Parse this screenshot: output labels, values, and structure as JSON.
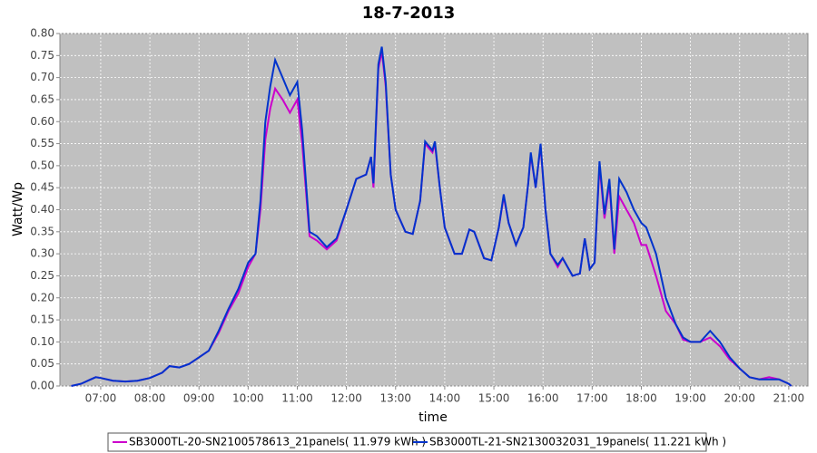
{
  "chart_data": {
    "type": "line",
    "title": "18-7-2013",
    "x_label": "time",
    "y_label": "Watt/Wp",
    "x": [
      6.4,
      6.6,
      6.8,
      6.9,
      7.0,
      7.25,
      7.5,
      7.75,
      8.0,
      8.25,
      8.4,
      8.6,
      8.8,
      9.0,
      9.2,
      9.4,
      9.6,
      9.8,
      10.0,
      10.15,
      10.25,
      10.35,
      10.45,
      10.55,
      10.7,
      10.85,
      11.0,
      11.1,
      11.25,
      11.4,
      11.6,
      11.8,
      12.0,
      12.2,
      12.4,
      12.5,
      12.55,
      12.65,
      12.72,
      12.8,
      12.9,
      13.0,
      13.2,
      13.35,
      13.5,
      13.6,
      13.75,
      13.8,
      13.9,
      14.0,
      14.2,
      14.35,
      14.5,
      14.6,
      14.8,
      14.95,
      15.1,
      15.2,
      15.3,
      15.45,
      15.6,
      15.7,
      15.75,
      15.85,
      15.95,
      16.05,
      16.15,
      16.3,
      16.4,
      16.6,
      16.75,
      16.85,
      16.95,
      17.05,
      17.15,
      17.25,
      17.35,
      17.45,
      17.55,
      17.7,
      17.85,
      18.0,
      18.1,
      18.3,
      18.5,
      18.7,
      18.85,
      19.0,
      19.2,
      19.4,
      19.6,
      19.8,
      20.0,
      20.2,
      20.4,
      20.6,
      20.8,
      21.0,
      21.05
    ],
    "series": [
      {
        "name": "SB3000TL-20-SN2100578613_21panels( 11.979 kWh )",
        "color": "#cc00cc",
        "values": [
          0.0,
          0.005,
          0.015,
          0.02,
          0.018,
          0.012,
          0.01,
          0.012,
          0.018,
          0.03,
          0.045,
          0.042,
          0.05,
          0.065,
          0.08,
          0.12,
          0.17,
          0.21,
          0.27,
          0.3,
          0.4,
          0.56,
          0.63,
          0.675,
          0.65,
          0.62,
          0.65,
          0.55,
          0.34,
          0.33,
          0.31,
          0.33,
          0.4,
          0.47,
          0.48,
          0.52,
          0.45,
          0.72,
          0.76,
          0.68,
          0.48,
          0.4,
          0.35,
          0.345,
          0.42,
          0.55,
          0.53,
          0.55,
          0.45,
          0.36,
          0.3,
          0.3,
          0.355,
          0.35,
          0.29,
          0.285,
          0.36,
          0.43,
          0.37,
          0.32,
          0.36,
          0.46,
          0.525,
          0.45,
          0.545,
          0.4,
          0.3,
          0.27,
          0.29,
          0.25,
          0.255,
          0.335,
          0.265,
          0.28,
          0.5,
          0.38,
          0.46,
          0.3,
          0.43,
          0.4,
          0.37,
          0.32,
          0.32,
          0.25,
          0.17,
          0.14,
          0.105,
          0.1,
          0.1,
          0.11,
          0.09,
          0.06,
          0.04,
          0.02,
          0.015,
          0.02,
          0.015,
          0.005,
          0.0
        ]
      },
      {
        "name": "SB3000TL-21-SN2130032031_19panels( 11.221 kWh )",
        "color": "#0033cc",
        "values": [
          0.0,
          0.005,
          0.015,
          0.02,
          0.018,
          0.012,
          0.01,
          0.012,
          0.018,
          0.03,
          0.045,
          0.042,
          0.05,
          0.065,
          0.08,
          0.125,
          0.175,
          0.22,
          0.28,
          0.3,
          0.42,
          0.6,
          0.68,
          0.74,
          0.7,
          0.66,
          0.69,
          0.58,
          0.35,
          0.34,
          0.315,
          0.335,
          0.4,
          0.47,
          0.48,
          0.52,
          0.46,
          0.73,
          0.77,
          0.69,
          0.48,
          0.4,
          0.35,
          0.345,
          0.42,
          0.555,
          0.535,
          0.555,
          0.45,
          0.36,
          0.3,
          0.3,
          0.355,
          0.35,
          0.29,
          0.285,
          0.36,
          0.435,
          0.37,
          0.32,
          0.36,
          0.46,
          0.53,
          0.45,
          0.55,
          0.4,
          0.3,
          0.275,
          0.29,
          0.25,
          0.255,
          0.335,
          0.265,
          0.28,
          0.51,
          0.39,
          0.47,
          0.31,
          0.47,
          0.44,
          0.4,
          0.37,
          0.36,
          0.3,
          0.2,
          0.14,
          0.11,
          0.1,
          0.1,
          0.125,
          0.1,
          0.065,
          0.04,
          0.02,
          0.015,
          0.015,
          0.015,
          0.005,
          0.0
        ]
      }
    ],
    "xlim": [
      6.17,
      21.39
    ],
    "xticks": [
      {
        "value": 7,
        "label": "07:00"
      },
      {
        "value": 8,
        "label": "08:00"
      },
      {
        "value": 9,
        "label": "09:00"
      },
      {
        "value": 10,
        "label": "10:00"
      },
      {
        "value": 11,
        "label": "11:00"
      },
      {
        "value": 12,
        "label": "12:00"
      },
      {
        "value": 13,
        "label": "13:00"
      },
      {
        "value": 14,
        "label": "14:00"
      },
      {
        "value": 15,
        "label": "15:00"
      },
      {
        "value": 16,
        "label": "16:00"
      },
      {
        "value": 17,
        "label": "17:00"
      },
      {
        "value": 18,
        "label": "18:00"
      },
      {
        "value": 19,
        "label": "19:00"
      },
      {
        "value": 20,
        "label": "20:00"
      },
      {
        "value": 21,
        "label": "21:00"
      }
    ],
    "ylim": [
      0,
      0.8
    ],
    "yticks": [
      {
        "value": 0,
        "label": "0.00"
      },
      {
        "value": 0.05,
        "label": "0.05"
      },
      {
        "value": 0.1,
        "label": "0.10"
      },
      {
        "value": 0.15,
        "label": "0.15"
      },
      {
        "value": 0.2,
        "label": "0.20"
      },
      {
        "value": 0.25,
        "label": "0.25"
      },
      {
        "value": 0.3,
        "label": "0.30"
      },
      {
        "value": 0.35,
        "label": "0.35"
      },
      {
        "value": 0.4,
        "label": "0.40"
      },
      {
        "value": 0.45,
        "label": "0.45"
      },
      {
        "value": 0.5,
        "label": "0.50"
      },
      {
        "value": 0.55,
        "label": "0.55"
      },
      {
        "value": 0.6,
        "label": "0.60"
      },
      {
        "value": 0.65,
        "label": "0.65"
      },
      {
        "value": 0.7,
        "label": "0.70"
      },
      {
        "value": 0.75,
        "label": "0.75"
      },
      {
        "value": 0.8,
        "label": "0.80"
      }
    ],
    "grid": true,
    "legend": "bottom"
  }
}
